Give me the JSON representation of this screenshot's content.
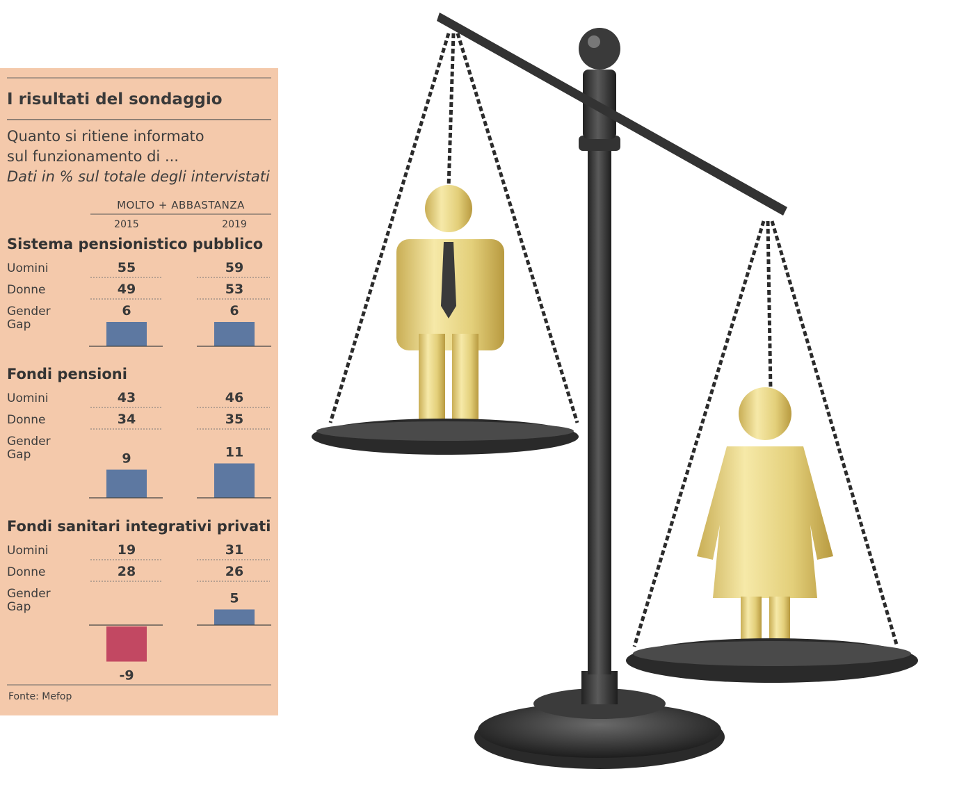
{
  "chart_data": {
    "type": "bar",
    "title": "I risultati del sondaggio",
    "subtitle_lines": [
      "Quanto si ritiene informato",
      "sul funzionamento di ..."
    ],
    "note": "Dati in % sul totale degli intervistati",
    "column_header": "MOLTO + ABBASTANZA",
    "years": [
      "2015",
      "2019"
    ],
    "row_labels": {
      "men": "Uomini",
      "women": "Donne",
      "gap_line1": "Gender",
      "gap_line2": "Gap"
    },
    "sections": [
      {
        "name": "Sistema pensionistico pubblico",
        "men": [
          55,
          59
        ],
        "women": [
          49,
          53
        ],
        "gap": [
          6,
          6
        ],
        "gap_labels": [
          "6",
          "6"
        ]
      },
      {
        "name": "Fondi pensioni",
        "men": [
          43,
          46
        ],
        "women": [
          34,
          35
        ],
        "gap": [
          9,
          11
        ],
        "gap_labels": [
          "9",
          "11"
        ]
      },
      {
        "name": "Fondi sanitari integrativi privati",
        "men": [
          19,
          31
        ],
        "women": [
          28,
          26
        ],
        "gap": [
          -9,
          5
        ],
        "gap_labels": [
          "-9",
          "5"
        ]
      }
    ],
    "source": "Fonte: Mefop",
    "colors": {
      "panel_bg": "#f4c9ab",
      "positive_bar": "#5d78a1",
      "negative_bar": "#c24862",
      "text": "#3a3a3a"
    }
  },
  "illustration": {
    "description_icon": "balance-scale-icon",
    "figures": [
      "man-figure-icon",
      "woman-figure-icon"
    ]
  }
}
